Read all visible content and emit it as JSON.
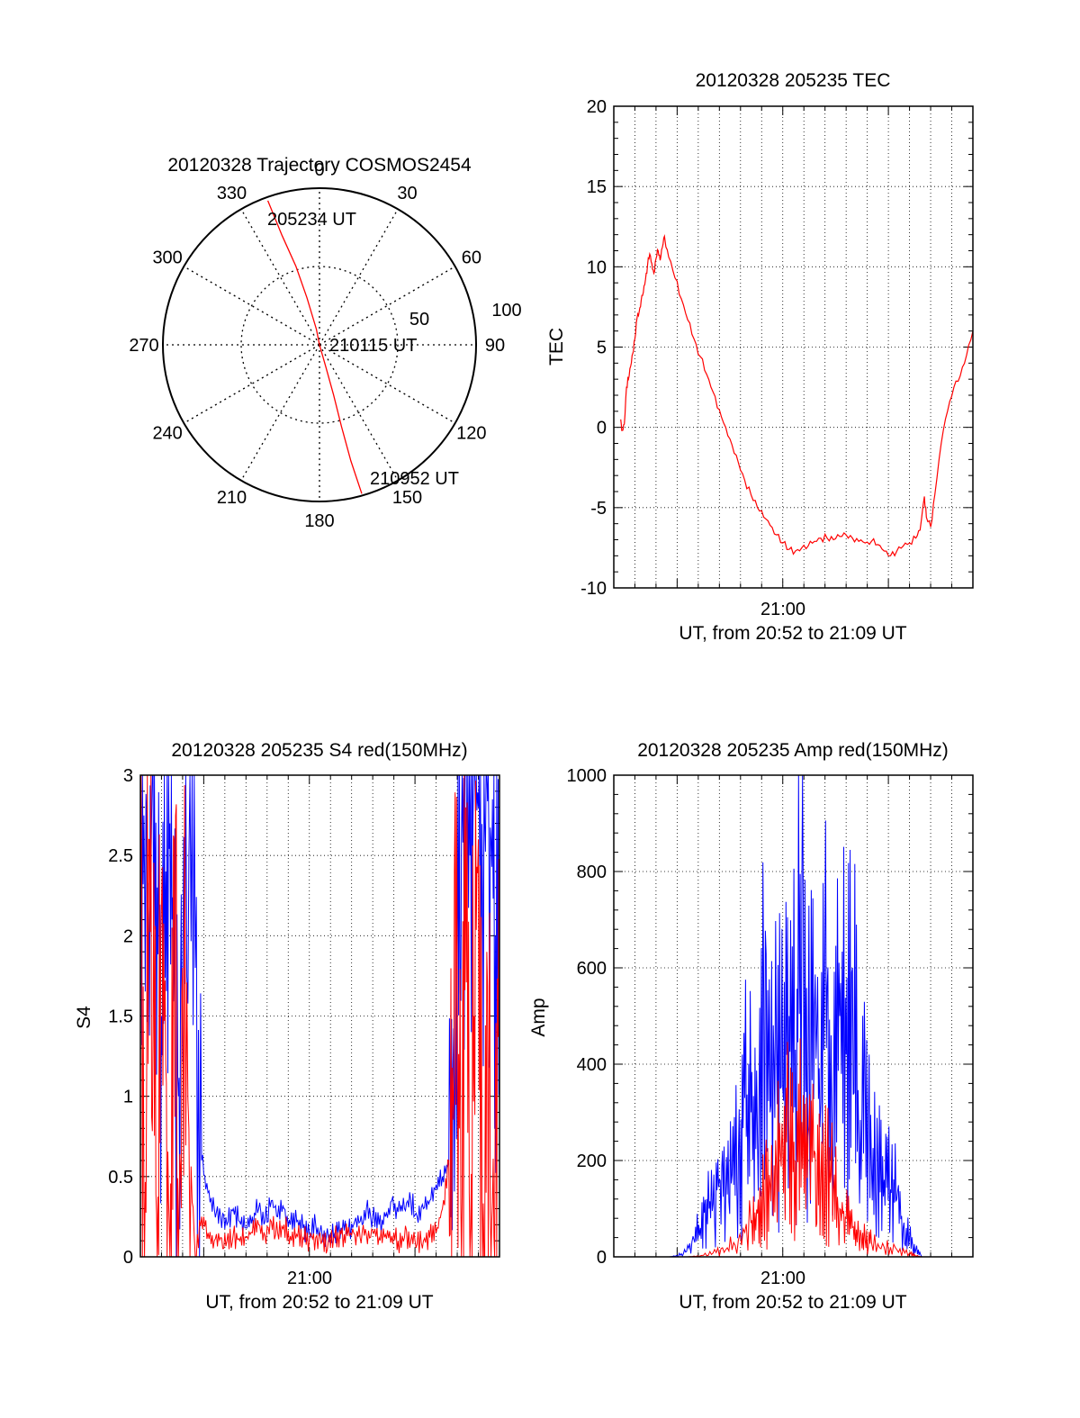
{
  "chart_data": [
    {
      "type": "polar",
      "title": "20120328 Trajectory COSMOS2454",
      "azimuth_labels": [
        "0",
        "30",
        "60",
        "90",
        "120",
        "150",
        "180",
        "210",
        "240",
        "270",
        "300",
        "330"
      ],
      "radial_labels": [
        "50",
        "100"
      ],
      "radial_values": [
        50,
        100
      ],
      "rmax": 100,
      "trajectory": {
        "color": "#ff0000",
        "points": [
          [
            -33,
            92
          ],
          [
            -24,
            70
          ],
          [
            -15,
            50
          ],
          [
            -8,
            30
          ],
          [
            -2,
            10
          ],
          [
            0,
            0
          ],
          [
            4,
            14
          ],
          [
            9,
            32
          ],
          [
            14,
            52
          ],
          [
            20,
            74
          ],
          [
            27,
            95
          ]
        ]
      },
      "annotations": {
        "start": "205234 UT",
        "mid": "210115 UT",
        "end": "210952 UT"
      }
    },
    {
      "type": "line",
      "title": "20120328 205235 TEC",
      "xlabel": "UT, from 20:52 to 21:09 UT",
      "ylabel": "TEC",
      "xlim": [
        20.8667,
        21.15
      ],
      "ylim": [
        -10,
        20
      ],
      "yticks": [
        "-10",
        "-5",
        "0",
        "5",
        "10",
        "15",
        "20"
      ],
      "xticks": [
        {
          "value": 21.0,
          "label": "21:00"
        }
      ],
      "series": [
        {
          "name": "TEC",
          "color": "#ff0000",
          "x": [
            20.8722,
            20.8733,
            20.875,
            20.8767,
            20.8783,
            20.88,
            20.8817,
            20.8833,
            20.885,
            20.8867,
            20.8883,
            20.89,
            20.8917,
            20.8933,
            20.895,
            20.8967,
            20.8983,
            20.9,
            20.9017,
            20.9033,
            20.905,
            20.9067,
            20.91,
            20.915,
            20.92,
            20.925,
            20.93,
            20.935,
            20.94,
            20.945,
            20.95,
            20.955,
            20.96,
            20.965,
            20.97,
            20.975,
            20.98,
            20.985,
            20.99,
            20.995,
            21.0,
            21.005,
            21.01,
            21.015,
            21.02,
            21.025,
            21.03,
            21.035,
            21.04,
            21.045,
            21.05,
            21.055,
            21.06,
            21.065,
            21.07,
            21.075,
            21.08,
            21.085,
            21.09,
            21.095,
            21.1,
            21.105,
            21.1083,
            21.1117,
            21.1133,
            21.1167,
            21.12,
            21.125,
            21.13,
            21.135,
            21.14,
            21.145,
            21.15
          ],
          "y": [
            0.5,
            -0.2,
            0.2,
            2.5,
            3.0,
            3.8,
            4.6,
            5.5,
            6.8,
            7.2,
            7.9,
            8.4,
            9.2,
            10.1,
            10.8,
            10.2,
            9.6,
            10.5,
            11.0,
            10.4,
            11.2,
            11.9,
            10.6,
            9.3,
            8.0,
            6.7,
            5.5,
            4.4,
            3.3,
            2.2,
            1.1,
            0.0,
            -1.1,
            -2.2,
            -3.3,
            -4.2,
            -5.0,
            -5.6,
            -6.1,
            -6.7,
            -7.2,
            -7.6,
            -7.7,
            -7.5,
            -7.4,
            -7.1,
            -6.9,
            -6.9,
            -7.0,
            -6.8,
            -6.7,
            -6.9,
            -7.1,
            -7.2,
            -7.1,
            -7.3,
            -7.7,
            -8.0,
            -7.7,
            -7.4,
            -7.2,
            -6.9,
            -6.4,
            -4.3,
            -5.6,
            -6.2,
            -4.2,
            -1.0,
            1.0,
            2.5,
            3.2,
            4.5,
            6.0
          ]
        }
      ]
    },
    {
      "type": "line",
      "title": "20120328 205235 S4 red(150MHz)",
      "xlabel": "UT, from 20:52 to 21:09 UT",
      "ylabel": "S4",
      "xlim": [
        20.8667,
        21.15
      ],
      "ylim": [
        0,
        3
      ],
      "yticks": [
        "0",
        "0.5",
        "1",
        "1.5",
        "2",
        "2.5",
        "3"
      ],
      "xticks": [
        {
          "value": 21.0,
          "label": "21:00"
        }
      ],
      "series": [
        {
          "name": "blue",
          "color": "#0000ff",
          "x": [
            20.8667,
            20.87,
            20.8733,
            20.8767,
            20.88,
            20.8833,
            20.8867,
            20.89,
            20.8933,
            20.8967,
            20.9,
            20.905,
            20.91,
            20.915,
            20.92,
            20.925,
            20.93,
            20.935,
            20.94,
            20.945,
            20.95,
            20.955,
            20.96,
            20.965,
            20.97,
            20.975,
            20.98,
            20.985,
            20.99,
            20.995,
            21.0,
            21.005,
            21.01,
            21.015,
            21.02,
            21.025,
            21.03,
            21.035,
            21.04,
            21.045,
            21.05,
            21.055,
            21.06,
            21.065,
            21.07,
            21.075,
            21.08,
            21.085,
            21.09,
            21.095,
            21.1,
            21.105,
            21.11,
            21.1133,
            21.1167,
            21.12,
            21.1233,
            21.1267,
            21.13,
            21.1333,
            21.1367,
            21.14,
            21.1433,
            21.1467,
            21.15
          ],
          "y": [
            3.0,
            2.4,
            2.1,
            3.0,
            2.3,
            1.5,
            2.4,
            2.7,
            2.0,
            1.0,
            1.5,
            2.5,
            1.8,
            0.6,
            0.4,
            0.3,
            0.25,
            0.2,
            0.3,
            0.22,
            0.18,
            0.25,
            0.3,
            0.22,
            0.35,
            0.25,
            0.3,
            0.2,
            0.22,
            0.18,
            0.15,
            0.2,
            0.14,
            0.12,
            0.15,
            0.18,
            0.16,
            0.2,
            0.22,
            0.3,
            0.25,
            0.2,
            0.25,
            0.35,
            0.28,
            0.3,
            0.35,
            0.25,
            0.3,
            0.35,
            0.45,
            0.5,
            0.6,
            1.2,
            1.8,
            2.6,
            3.0,
            2.5,
            3.0,
            2.8,
            2.2,
            3.0,
            2.6,
            2.0,
            1.4
          ]
        },
        {
          "name": "red",
          "color": "#ff0000",
          "x": [
            20.8667,
            20.87,
            20.8733,
            20.8767,
            20.88,
            20.8833,
            20.8867,
            20.89,
            20.8933,
            20.8967,
            20.9,
            20.905,
            20.91,
            20.915,
            20.92,
            20.925,
            20.93,
            20.935,
            20.94,
            20.945,
            20.95,
            20.955,
            20.96,
            20.965,
            20.97,
            20.975,
            20.98,
            20.985,
            20.99,
            20.995,
            21.0,
            21.005,
            21.01,
            21.015,
            21.02,
            21.025,
            21.03,
            21.035,
            21.04,
            21.045,
            21.05,
            21.055,
            21.06,
            21.065,
            21.07,
            21.075,
            21.08,
            21.085,
            21.09,
            21.095,
            21.1,
            21.105,
            21.11,
            21.1133,
            21.1167,
            21.12,
            21.1233,
            21.1267,
            21.13,
            21.1333,
            21.1367,
            21.14,
            21.1433,
            21.1467,
            21.15
          ],
          "y": [
            2.3,
            0.0,
            2.6,
            1.4,
            0.0,
            2.2,
            1.2,
            0.0,
            2.6,
            0.0,
            1.8,
            0.8,
            0.0,
            0.25,
            0.15,
            0.1,
            0.12,
            0.1,
            0.14,
            0.1,
            0.12,
            0.15,
            0.2,
            0.13,
            0.22,
            0.15,
            0.2,
            0.13,
            0.14,
            0.12,
            0.11,
            0.12,
            0.1,
            0.1,
            0.12,
            0.14,
            0.13,
            0.15,
            0.12,
            0.14,
            0.16,
            0.12,
            0.14,
            0.13,
            0.1,
            0.12,
            0.1,
            0.08,
            0.1,
            0.12,
            0.15,
            0.3,
            0.6,
            1.0,
            1.8,
            0.0,
            2.8,
            0.0,
            1.5,
            2.6,
            0.0,
            1.9,
            0.0,
            1.2,
            1.6
          ]
        }
      ]
    },
    {
      "type": "line",
      "title": "20120328 205235 Amp red(150MHz)",
      "xlabel": "UT, from 20:52 to 21:09 UT",
      "ylabel": "Amp",
      "xlim": [
        20.8667,
        21.15
      ],
      "ylim": [
        0,
        1000
      ],
      "yticks": [
        "0",
        "200",
        "400",
        "600",
        "800",
        "1000"
      ],
      "xticks": [
        {
          "value": 21.0,
          "label": "21:00"
        }
      ],
      "series": [
        {
          "name": "blue",
          "color": "#0000ff",
          "x": [
            20.8667,
            20.9,
            20.91,
            20.9167,
            20.9233,
            20.93,
            20.935,
            20.94,
            20.945,
            20.95,
            20.955,
            20.96,
            20.965,
            20.97,
            20.975,
            20.98,
            20.985,
            20.99,
            20.995,
            21.0,
            21.005,
            21.01,
            21.015,
            21.02,
            21.025,
            21.03,
            21.035,
            21.04,
            21.045,
            21.05,
            21.055,
            21.06,
            21.065,
            21.07,
            21.075,
            21.08,
            21.085,
            21.09,
            21.095,
            21.1,
            21.105,
            21.11,
            21.15
          ],
          "y": [
            0,
            0,
            0,
            2,
            10,
            35,
            60,
            120,
            110,
            160,
            130,
            170,
            210,
            330,
            300,
            250,
            540,
            300,
            440,
            350,
            500,
            430,
            750,
            380,
            510,
            320,
            560,
            300,
            500,
            420,
            600,
            240,
            380,
            190,
            200,
            160,
            140,
            120,
            60,
            40,
            15,
            0,
            0
          ]
        },
        {
          "name": "red",
          "color": "#ff0000",
          "x": [
            20.8667,
            20.925,
            20.935,
            20.945,
            20.955,
            20.965,
            20.975,
            20.98,
            20.985,
            20.99,
            20.995,
            21.0,
            21.005,
            21.01,
            21.015,
            21.02,
            21.025,
            21.03,
            21.035,
            21.04,
            21.045,
            21.05,
            21.055,
            21.06,
            21.065,
            21.07,
            21.08,
            21.09,
            21.1,
            21.105,
            21.11,
            21.15
          ],
          "y": [
            0,
            0,
            2,
            8,
            15,
            35,
            70,
            90,
            120,
            150,
            190,
            230,
            250,
            200,
            280,
            250,
            220,
            160,
            190,
            140,
            100,
            80,
            60,
            45,
            35,
            30,
            20,
            15,
            8,
            2,
            0,
            0
          ]
        }
      ]
    }
  ]
}
